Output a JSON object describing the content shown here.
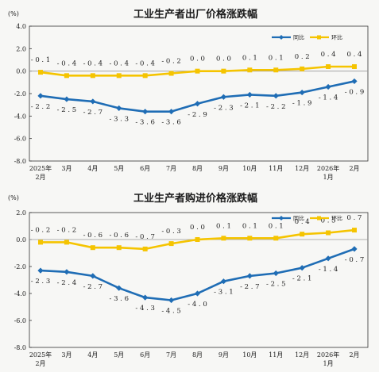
{
  "colors": {
    "yoy": "#1f6db5",
    "mom": "#f5c400",
    "zero": "#999999"
  },
  "chart_data": [
    {
      "type": "line",
      "title": "工业生产者出厂价格涨跌幅",
      "unit_label": "(%)",
      "ylim": [
        -8.0,
        4.0
      ],
      "yticks": [
        "4.0",
        "2.0",
        "0.0",
        "-2.0",
        "-4.0",
        "-6.0",
        "-8.0"
      ],
      "categories": [
        [
          "2025年",
          "2月"
        ],
        [
          "3月"
        ],
        [
          "4月"
        ],
        [
          "5月"
        ],
        [
          "6月"
        ],
        [
          "7月"
        ],
        [
          "8月"
        ],
        [
          "9月"
        ],
        [
          "10月"
        ],
        [
          "11月"
        ],
        [
          "12月"
        ],
        [
          "2026年",
          "1月"
        ],
        [
          "2月"
        ]
      ],
      "legend": {
        "position": "top-right",
        "items": [
          "同比",
          "环比"
        ]
      },
      "series": [
        {
          "name": "同比",
          "values": [
            -2.2,
            -2.5,
            -2.7,
            -3.3,
            -3.6,
            -3.6,
            -2.9,
            -2.3,
            -2.1,
            -2.2,
            -1.9,
            -1.4,
            -0.9
          ]
        },
        {
          "name": "环比",
          "values": [
            -0.1,
            -0.4,
            -0.4,
            -0.4,
            -0.4,
            -0.2,
            0.0,
            0.0,
            0.1,
            0.1,
            0.2,
            0.4,
            0.4
          ]
        }
      ]
    },
    {
      "type": "line",
      "title": "工业生产者购进价格涨跌幅",
      "unit_label": "(%)",
      "ylim": [
        -8.0,
        2.0
      ],
      "yticks": [
        "2.0",
        "0.0",
        "-2.0",
        "-4.0",
        "-6.0",
        "-8.0"
      ],
      "categories": [
        [
          "2025年",
          "2月"
        ],
        [
          "3月"
        ],
        [
          "4月"
        ],
        [
          "5月"
        ],
        [
          "6月"
        ],
        [
          "7月"
        ],
        [
          "8月"
        ],
        [
          "9月"
        ],
        [
          "10月"
        ],
        [
          "11月"
        ],
        [
          "12月"
        ],
        [
          "2026年",
          "1月"
        ],
        [
          "2月"
        ]
      ],
      "legend": {
        "position": "top-right",
        "items": [
          "同比",
          "环比"
        ]
      },
      "series": [
        {
          "name": "同比",
          "values": [
            -2.3,
            -2.4,
            -2.7,
            -3.6,
            -4.3,
            -4.5,
            -4.0,
            -3.1,
            -2.7,
            -2.5,
            -2.1,
            -1.4,
            -0.7
          ]
        },
        {
          "name": "环比",
          "values": [
            -0.2,
            -0.2,
            -0.6,
            -0.6,
            -0.7,
            -0.3,
            0.0,
            0.1,
            0.1,
            0.1,
            0.4,
            0.5,
            0.7
          ]
        }
      ]
    }
  ]
}
